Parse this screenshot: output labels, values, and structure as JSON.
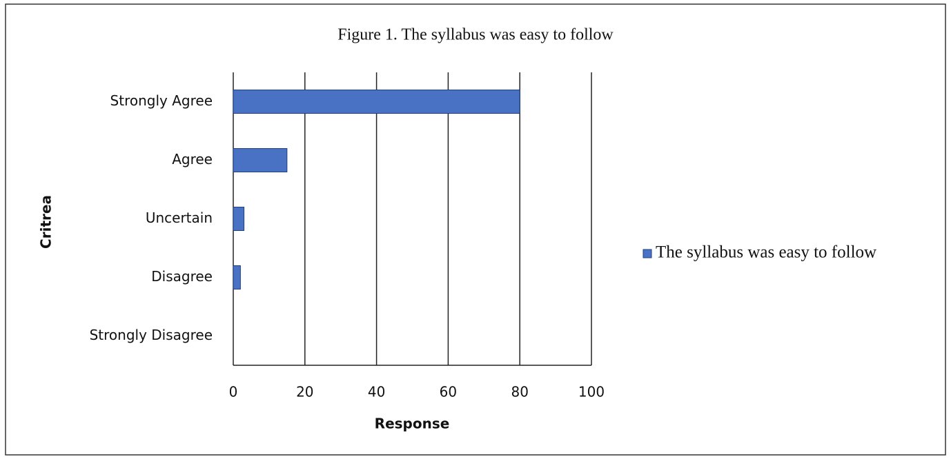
{
  "chart_data": {
    "type": "bar",
    "orientation": "horizontal",
    "title": "Figure 1. The syllabus was easy to follow",
    "xlabel": "Response",
    "ylabel": "Critrea",
    "categories": [
      "Strongly Agree",
      "Agree",
      "Uncertain",
      "Disagree",
      "Strongly Disagree"
    ],
    "series": [
      {
        "name": "The syllabus was easy to follow",
        "color": "#4a72c4",
        "values": [
          80,
          15,
          3,
          2,
          0
        ]
      }
    ],
    "xlim": [
      0,
      100
    ],
    "xticks": [
      0,
      20,
      40,
      60,
      80,
      100
    ],
    "grid": true,
    "legend": "right"
  }
}
